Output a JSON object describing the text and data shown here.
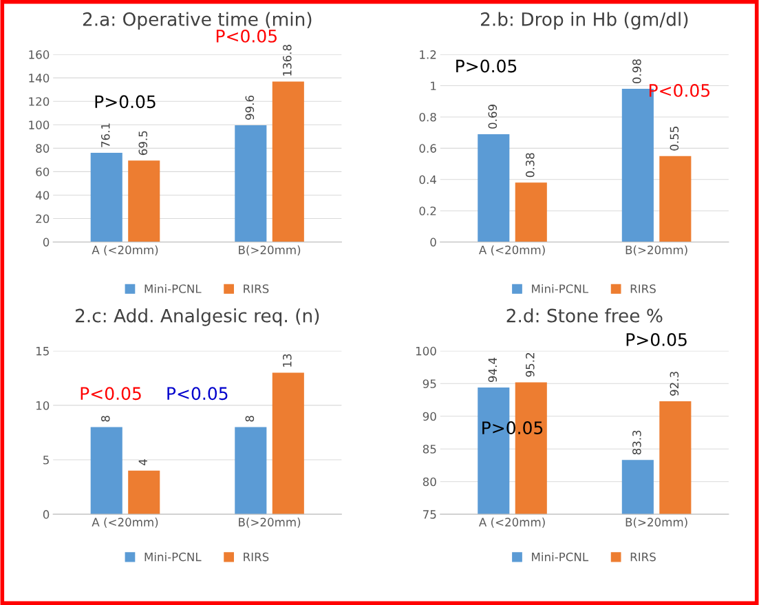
{
  "chart_data": [
    {
      "type": "bar",
      "title": "2.a: Operative time (min)",
      "categories": [
        "A (<20mm)",
        "B(>20mm)"
      ],
      "series": [
        {
          "name": "Mini-PCNL",
          "color": "#5b9bd5",
          "values": [
            76.1,
            99.6
          ]
        },
        {
          "name": "RIRS",
          "color": "#ed7d31",
          "values": [
            69.5,
            136.8
          ]
        }
      ],
      "ylim": [
        0,
        160
      ],
      "yticks": [
        0,
        20,
        40,
        60,
        80,
        100,
        120,
        140,
        160
      ],
      "grid": "y",
      "legend": "bottom",
      "data_labels": true,
      "annotations": [
        "P>0.05",
        "P<0.05"
      ]
    },
    {
      "type": "bar",
      "title": "2.b: Drop in Hb (gm/dl)",
      "categories": [
        "A (<20mm)",
        "B(>20mm)"
      ],
      "series": [
        {
          "name": "Mini-PCNL",
          "color": "#5b9bd5",
          "values": [
            0.69,
            0.98
          ]
        },
        {
          "name": "RIRS",
          "color": "#ed7d31",
          "values": [
            0.38,
            0.55
          ]
        }
      ],
      "ylim": [
        0,
        1.2
      ],
      "yticks": [
        0,
        0.2,
        0.4,
        0.6,
        0.8,
        1,
        1.2
      ],
      "grid": "y",
      "legend": "bottom",
      "data_labels": true,
      "annotations": [
        "P>0.05",
        "P<0.05"
      ]
    },
    {
      "type": "bar",
      "title": "2.c: Add. Analgesic req. (n)",
      "categories": [
        "A (<20mm)",
        "B(>20mm)"
      ],
      "series": [
        {
          "name": "Mini-PCNL",
          "color": "#5b9bd5",
          "values": [
            8,
            8
          ]
        },
        {
          "name": "RIRS",
          "color": "#ed7d31",
          "values": [
            4,
            13
          ]
        }
      ],
      "ylim": [
        0,
        15
      ],
      "yticks": [
        0,
        5,
        10,
        15
      ],
      "grid": "y",
      "legend": "bottom",
      "data_labels": true,
      "annotations": [
        "P<0.05",
        "P<0.05"
      ]
    },
    {
      "type": "bar",
      "title": "2.d: Stone free %",
      "categories": [
        "A (<20mm)",
        "B(>20mm)"
      ],
      "series": [
        {
          "name": "Mini-PCNL",
          "color": "#5b9bd5",
          "values": [
            94.4,
            83.3
          ]
        },
        {
          "name": "RIRS",
          "color": "#ed7d31",
          "values": [
            95.2,
            92.3
          ]
        }
      ],
      "ylim": [
        75,
        100
      ],
      "yticks": [
        75,
        80,
        85,
        90,
        95,
        100
      ],
      "grid": "y",
      "legend": "bottom",
      "data_labels": true,
      "annotations": [
        "P>0.05",
        "P>0.05"
      ]
    }
  ]
}
